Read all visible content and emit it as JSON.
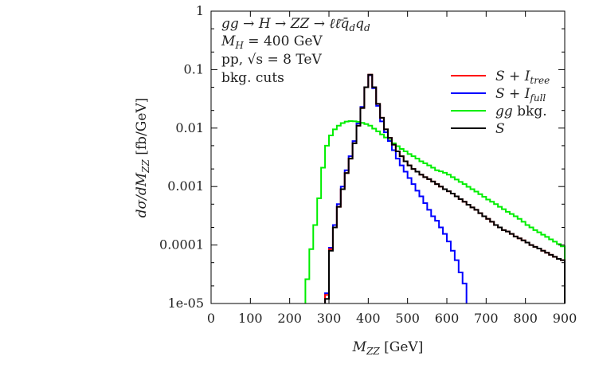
{
  "chart_data": {
    "type": "line",
    "xlabel": {
      "main": "M",
      "sub": "ZZ",
      "unit": " [GeV]"
    },
    "ylabel": {
      "pre": "dσ/dM",
      "sub": "ZZ",
      "unit": " [fb/GeV]"
    },
    "xlim": [
      0,
      900
    ],
    "ylim": [
      1e-05,
      1
    ],
    "yscale": "log",
    "grid": false,
    "legend_position": "top-right",
    "x_ticks": [
      "0",
      "100",
      "200",
      "300",
      "400",
      "500",
      "600",
      "700",
      "800",
      "900"
    ],
    "y_ticks": [
      "1e-05",
      "0.0001",
      "0.001",
      "0.01",
      "0.1",
      "1"
    ],
    "annotations": {
      "line1": {
        "a": "gg  → H → ZZ → ℓℓ̄q̄",
        "s1": "d",
        "b": "q",
        "s2": "d"
      },
      "line2": {
        "a": "M",
        "s": "H",
        "b": " = 400 GeV"
      },
      "line3": "pp, √s = 8 TeV",
      "line4": "bkg. cuts"
    },
    "series": [
      {
        "name": "S + I",
        "name_sub": "tree",
        "color": "#ff0000",
        "x": [
          290,
          300,
          310,
          320,
          330,
          340,
          350,
          360,
          370,
          380,
          390,
          400,
          410,
          420,
          430,
          440,
          450,
          460,
          470,
          480,
          490,
          500,
          510,
          520,
          530,
          540,
          550,
          560,
          570,
          580,
          590,
          600,
          610,
          620,
          630,
          640,
          650,
          660,
          670,
          680,
          690,
          700,
          710,
          720,
          730,
          740,
          750,
          760,
          770,
          780,
          790,
          800,
          810,
          820,
          830,
          840,
          850,
          860,
          870,
          880,
          890,
          900
        ],
        "y": [
          1.4e-05,
          8.5e-05,
          0.0002,
          0.00045,
          0.0009,
          0.0017,
          0.003,
          0.0055,
          0.011,
          0.022,
          0.05,
          0.082,
          0.05,
          0.026,
          0.015,
          0.0095,
          0.0068,
          0.0052,
          0.004,
          0.0033,
          0.0027,
          0.0023,
          0.002,
          0.0018,
          0.0016,
          0.00145,
          0.00134,
          0.00122,
          0.0011,
          0.001,
          0.0009,
          0.00083,
          0.00076,
          0.00068,
          0.00061,
          0.00055,
          0.00049,
          0.00044,
          0.0004,
          0.00035,
          0.00031,
          0.00028,
          0.00025,
          0.00022,
          0.0002,
          0.00018,
          0.00017,
          0.000155,
          0.00014,
          0.00013,
          0.00012,
          0.00011,
          0.0001,
          9.3e-05,
          8.7e-05,
          8e-05,
          7.4e-05,
          6.8e-05,
          6.3e-05,
          5.8e-05,
          5.5e-05,
          5.2e-05
        ]
      },
      {
        "name": "S + I",
        "name_sub": "full",
        "color": "#0000ff",
        "x": [
          290,
          300,
          310,
          320,
          330,
          340,
          350,
          360,
          370,
          380,
          390,
          400,
          410,
          420,
          430,
          440,
          450,
          460,
          470,
          480,
          490,
          500,
          510,
          520,
          530,
          540,
          550,
          560,
          570,
          580,
          590,
          600,
          610,
          620,
          630,
          640
        ],
        "y": [
          1.5e-05,
          9e-05,
          0.00022,
          0.0005,
          0.001,
          0.0019,
          0.0033,
          0.006,
          0.012,
          0.023,
          0.05,
          0.08,
          0.048,
          0.024,
          0.013,
          0.0085,
          0.006,
          0.0042,
          0.003,
          0.0023,
          0.0018,
          0.0014,
          0.0011,
          0.00085,
          0.00068,
          0.00052,
          0.0004,
          0.00031,
          0.00026,
          0.0002,
          0.000155,
          0.000115,
          8e-05,
          5.5e-05,
          3.4e-05,
          2.2e-05
        ]
      },
      {
        "name": "gg bkg.",
        "name_italic": "gg",
        "name_rest": " bkg.",
        "color": "#00ee00",
        "x": [
          240,
          250,
          260,
          270,
          280,
          290,
          300,
          310,
          320,
          330,
          340,
          350,
          360,
          370,
          380,
          390,
          400,
          410,
          420,
          430,
          440,
          450,
          460,
          470,
          480,
          490,
          500,
          510,
          520,
          530,
          540,
          550,
          560,
          570,
          580,
          590,
          600,
          610,
          620,
          630,
          640,
          650,
          660,
          670,
          680,
          690,
          700,
          710,
          720,
          730,
          740,
          750,
          760,
          770,
          780,
          790,
          800,
          810,
          820,
          830,
          840,
          850,
          860,
          870,
          880,
          890,
          900
        ],
        "y": [
          2.6e-05,
          8.5e-05,
          0.00022,
          0.00063,
          0.0021,
          0.005,
          0.0075,
          0.0095,
          0.011,
          0.0122,
          0.0129,
          0.0132,
          0.0131,
          0.0128,
          0.0123,
          0.0117,
          0.011,
          0.0098,
          0.0088,
          0.0078,
          0.0069,
          0.0062,
          0.0055,
          0.0049,
          0.0044,
          0.004,
          0.0036,
          0.0033,
          0.003,
          0.0027,
          0.0025,
          0.0023,
          0.0021,
          0.0019,
          0.00182,
          0.00172,
          0.0016,
          0.00145,
          0.00132,
          0.0012,
          0.0011,
          0.00099,
          0.0009,
          0.00082,
          0.00074,
          0.00067,
          0.0006,
          0.00055,
          0.0005,
          0.00045,
          0.00041,
          0.00037,
          0.00034,
          0.00031,
          0.00028,
          0.00025,
          0.00022,
          0.0002,
          0.00018,
          0.000165,
          0.00015,
          0.000138,
          0.000125,
          0.000114,
          0.000104,
          9.5e-05,
          8.7e-05
        ]
      },
      {
        "name": "S",
        "color": "#000000",
        "x": [
          290,
          300,
          310,
          320,
          330,
          340,
          350,
          360,
          370,
          380,
          390,
          400,
          410,
          420,
          430,
          440,
          450,
          460,
          470,
          480,
          490,
          500,
          510,
          520,
          530,
          540,
          550,
          560,
          570,
          580,
          590,
          600,
          610,
          620,
          630,
          640,
          650,
          660,
          670,
          680,
          690,
          700,
          710,
          720,
          730,
          740,
          750,
          760,
          770,
          780,
          790,
          800,
          810,
          820,
          830,
          840,
          850,
          860,
          870,
          880,
          890,
          900
        ],
        "y": [
          1.2e-05,
          8e-05,
          0.0002,
          0.00045,
          0.0009,
          0.0017,
          0.003,
          0.0055,
          0.011,
          0.022,
          0.05,
          0.082,
          0.05,
          0.026,
          0.015,
          0.0095,
          0.0068,
          0.0052,
          0.004,
          0.0033,
          0.0027,
          0.0023,
          0.002,
          0.0018,
          0.0016,
          0.00145,
          0.00134,
          0.00122,
          0.0011,
          0.001,
          0.0009,
          0.00083,
          0.00076,
          0.00068,
          0.00061,
          0.00055,
          0.00049,
          0.00044,
          0.0004,
          0.00035,
          0.00031,
          0.00028,
          0.00025,
          0.00022,
          0.0002,
          0.00018,
          0.00017,
          0.000155,
          0.00014,
          0.00013,
          0.00012,
          0.00011,
          0.0001,
          9.3e-05,
          8.7e-05,
          8e-05,
          7.4e-05,
          6.8e-05,
          6.3e-05,
          5.8e-05,
          5.5e-05,
          5.2e-05
        ]
      }
    ]
  }
}
